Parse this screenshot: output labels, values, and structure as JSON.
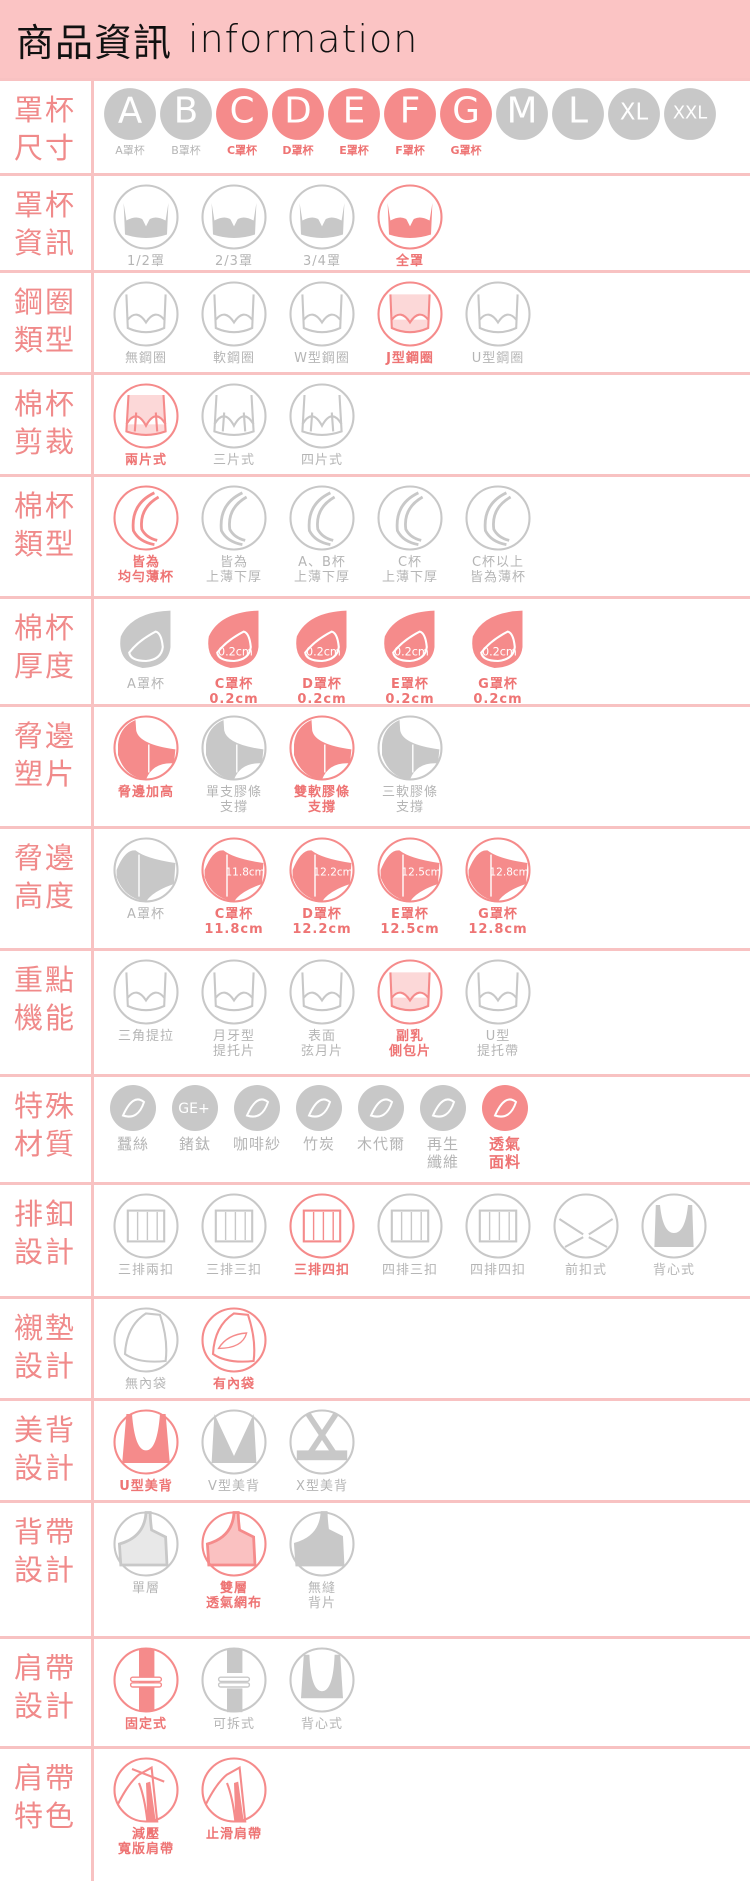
{
  "header": {
    "title_cn": "商品資訊",
    "title_en": "information"
  },
  "colors": {
    "active": "#f58b8b",
    "inactive": "#c8c8c8",
    "header_bg": "#fbc4c4",
    "title": "#f08a8a",
    "divider": "#f8c2c2"
  },
  "rows": [
    {
      "title": "罩杯\n尺寸",
      "kind": "letters",
      "items": [
        {
          "letter": "A",
          "label": "A罩杯",
          "active": false
        },
        {
          "letter": "B",
          "label": "B罩杯",
          "active": false
        },
        {
          "letter": "C",
          "label": "C罩杯",
          "active": true
        },
        {
          "letter": "D",
          "label": "D罩杯",
          "active": true
        },
        {
          "letter": "E",
          "label": "E罩杯",
          "active": true
        },
        {
          "letter": "F",
          "label": "F罩杯",
          "active": true
        },
        {
          "letter": "G",
          "label": "G罩杯",
          "active": true
        },
        {
          "letter": "M",
          "active": false
        },
        {
          "letter": "L",
          "active": false
        },
        {
          "letter": "XL",
          "active": false
        },
        {
          "letter": "XXL",
          "active": false
        }
      ]
    },
    {
      "title": "罩杯\n資訊",
      "kind": "std",
      "icon": "bra-fill",
      "items": [
        {
          "label": "1/2罩",
          "active": false
        },
        {
          "label": "2/3罩",
          "active": false
        },
        {
          "label": "3/4罩",
          "active": false
        },
        {
          "label": "全罩",
          "active": true
        }
      ]
    },
    {
      "title": "鋼圈\n類型",
      "kind": "std",
      "icon": "bra-outline",
      "items": [
        {
          "label": "無鋼圈",
          "active": false
        },
        {
          "label": "軟鋼圈",
          "active": false
        },
        {
          "label": "W型鋼圈",
          "active": false
        },
        {
          "label": "J型鋼圈",
          "active": true
        },
        {
          "label": "U型鋼圈",
          "active": false
        }
      ]
    },
    {
      "title": "棉杯\n剪裁",
      "kind": "std",
      "icon": "bra-seams",
      "items": [
        {
          "label": "兩片式",
          "active": true
        },
        {
          "label": "三片式",
          "active": false
        },
        {
          "label": "四片式",
          "active": false
        }
      ]
    },
    {
      "title": "棉杯\n類型",
      "kind": "std",
      "icon": "crescent",
      "items": [
        {
          "label": "皆為\n均勻薄杯",
          "active": true
        },
        {
          "label": "皆為\n上薄下厚",
          "active": false
        },
        {
          "label": "A、B杯\n上薄下厚",
          "active": false
        },
        {
          "label": "C杯\n上薄下厚",
          "active": false
        },
        {
          "label": "C杯以上\n皆為薄杯",
          "active": false
        }
      ]
    },
    {
      "title": "棉杯\n厚度",
      "kind": "std",
      "icon": "pad",
      "items": [
        {
          "label": "A罩杯",
          "active": false
        },
        {
          "label": "C罩杯\n0.2cm",
          "icon_text": "0.2cm",
          "active": true
        },
        {
          "label": "D罩杯\n0.2cm",
          "icon_text": "0.2cm",
          "active": true
        },
        {
          "label": "E罩杯\n0.2cm",
          "icon_text": "0.2cm",
          "active": true
        },
        {
          "label": "G罩杯\n0.2cm",
          "icon_text": "0.2cm",
          "active": true
        }
      ]
    },
    {
      "title": "脅邊\n塑片",
      "kind": "std",
      "icon": "side",
      "items": [
        {
          "label": "脅邊加高",
          "active": true
        },
        {
          "label": "單支膠條\n支撐",
          "active": false
        },
        {
          "label": "雙軟膠條\n支撐",
          "active": true
        },
        {
          "label": "三軟膠條\n支撐",
          "active": false
        }
      ]
    },
    {
      "title": "脅邊\n高度",
      "kind": "std",
      "icon": "height",
      "items": [
        {
          "label": "A罩杯",
          "active": false
        },
        {
          "label": "C罩杯\n11.8cm",
          "icon_text": "11.8cm",
          "active": true
        },
        {
          "label": "D罩杯\n12.2cm",
          "icon_text": "12.2cm",
          "active": true
        },
        {
          "label": "E罩杯\n12.5cm",
          "icon_text": "12.5cm",
          "active": true
        },
        {
          "label": "G罩杯\n12.8cm",
          "icon_text": "12.8cm",
          "active": true
        }
      ]
    },
    {
      "title": "重點\n機能",
      "kind": "std",
      "icon": "bra-outline",
      "items": [
        {
          "label": "三角提拉",
          "active": false
        },
        {
          "label": "月牙型\n提托片",
          "active": false
        },
        {
          "label": "表面\n弦月片",
          "active": false
        },
        {
          "label": "副乳\n側包片",
          "active": true
        },
        {
          "label": "U型\n提托帶",
          "active": false
        }
      ]
    },
    {
      "title": "特殊\n材質",
      "kind": "material",
      "icon": "material",
      "items": [
        {
          "label": "蠶絲",
          "active": false
        },
        {
          "label": "鍺鈦",
          "icon_text": "GE+",
          "active": false
        },
        {
          "label": "咖啡紗",
          "active": false
        },
        {
          "label": "竹炭",
          "active": false
        },
        {
          "label": "木代爾",
          "active": false
        },
        {
          "label": "再生\n纖維",
          "active": false
        },
        {
          "label": "透氣\n面料",
          "active": true
        }
      ]
    },
    {
      "title": "排釦\n設計",
      "kind": "std",
      "icon": "hooks",
      "items": [
        {
          "label": "三排兩扣",
          "active": false
        },
        {
          "label": "三排三扣",
          "active": false
        },
        {
          "label": "三排四扣",
          "active": true
        },
        {
          "label": "四排三扣",
          "active": false
        },
        {
          "label": "四排四扣",
          "active": false
        },
        {
          "label": "前扣式",
          "active": false
        },
        {
          "label": "背心式",
          "active": false
        }
      ]
    },
    {
      "title": "襯墊\n設計",
      "kind": "std",
      "icon": "pocket",
      "items": [
        {
          "label": "無內袋",
          "active": false
        },
        {
          "label": "有內袋",
          "active": true
        }
      ]
    },
    {
      "title": "美背\n設計",
      "kind": "std",
      "icon": "back",
      "items": [
        {
          "label": "U型美背",
          "active": true
        },
        {
          "label": "V型美背",
          "active": false
        },
        {
          "label": "X型美背",
          "active": false
        }
      ]
    },
    {
      "title": "背帶\n設計",
      "kind": "std",
      "icon": "band",
      "items": [
        {
          "label": "單層",
          "active": false
        },
        {
          "label": "雙層\n透氣網布",
          "active": true
        },
        {
          "label": "無縫\n背片",
          "active": false
        }
      ]
    },
    {
      "title": "肩帶\n設計",
      "kind": "std",
      "icon": "strap",
      "items": [
        {
          "label": "固定式",
          "active": true
        },
        {
          "label": "可拆式",
          "active": false
        },
        {
          "label": "背心式",
          "active": false
        }
      ]
    },
    {
      "title": "肩帶\n特色",
      "kind": "std",
      "icon": "shoulder",
      "items": [
        {
          "label": "減壓\n寬版肩帶",
          "active": true
        },
        {
          "label": "止滑肩帶",
          "active": true
        }
      ]
    }
  ]
}
